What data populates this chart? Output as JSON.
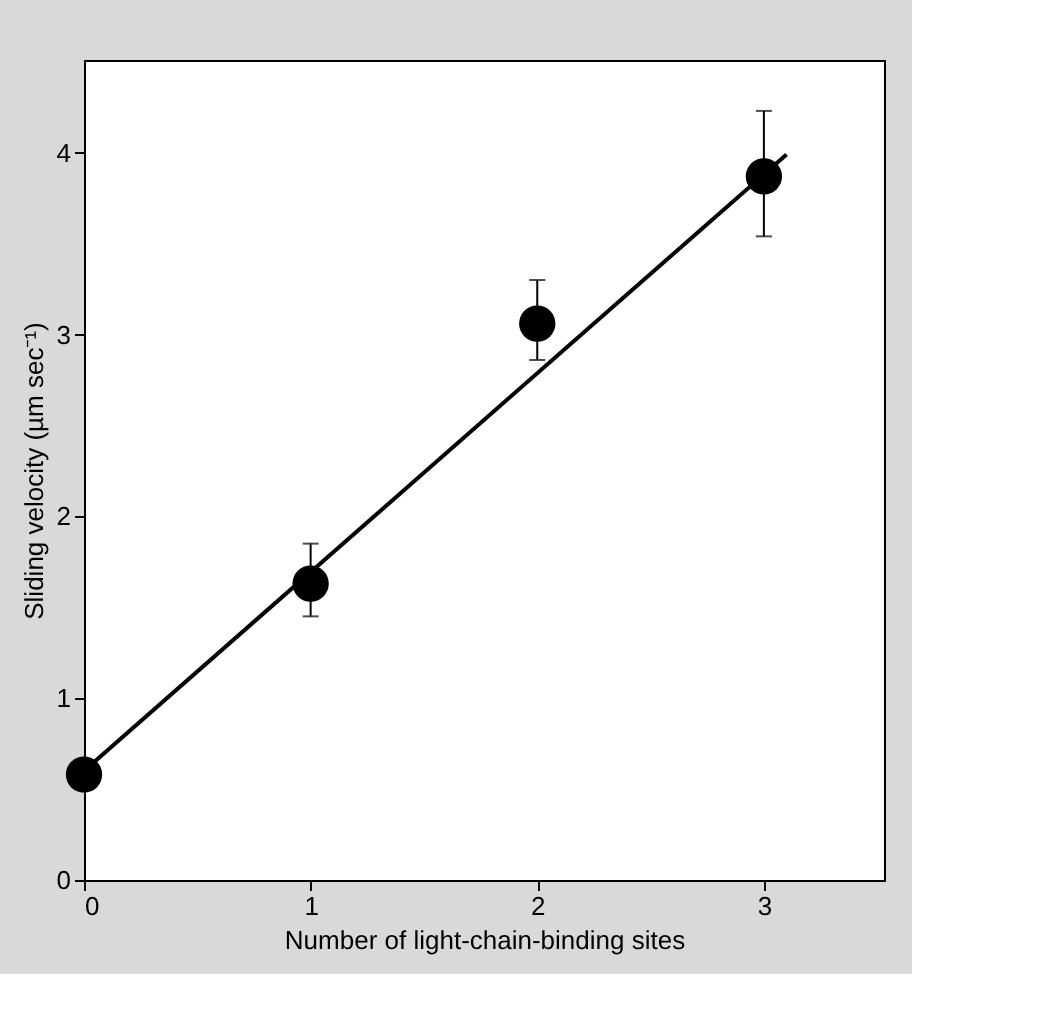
{
  "chart_data": {
    "type": "scatter",
    "xlabel": "Number of light-chain-binding sites",
    "ylabel": "Sliding velocity (µm sec⁻¹)",
    "x": [
      0,
      1,
      2,
      3
    ],
    "xlim": [
      0,
      3.53
    ],
    "xticks": [
      0,
      1,
      2,
      3
    ],
    "ylim": [
      0,
      4.51
    ],
    "yticks": [
      0,
      1,
      2,
      3,
      4
    ],
    "grid": false,
    "marker": "circle",
    "series": [
      {
        "color": "#000000",
        "values": [
          0.58,
          1.63,
          3.06,
          3.87
        ],
        "errors": [
          null,
          [
            1.45,
            1.85
          ],
          [
            2.86,
            3.3
          ],
          [
            3.54,
            4.23
          ]
        ]
      },
      {
        "type": "line",
        "color": "#000000",
        "x": [
          0,
          3.1
        ],
        "values": [
          0.6,
          3.99
        ],
        "marker": "none",
        "line_style": "solid"
      }
    ]
  }
}
